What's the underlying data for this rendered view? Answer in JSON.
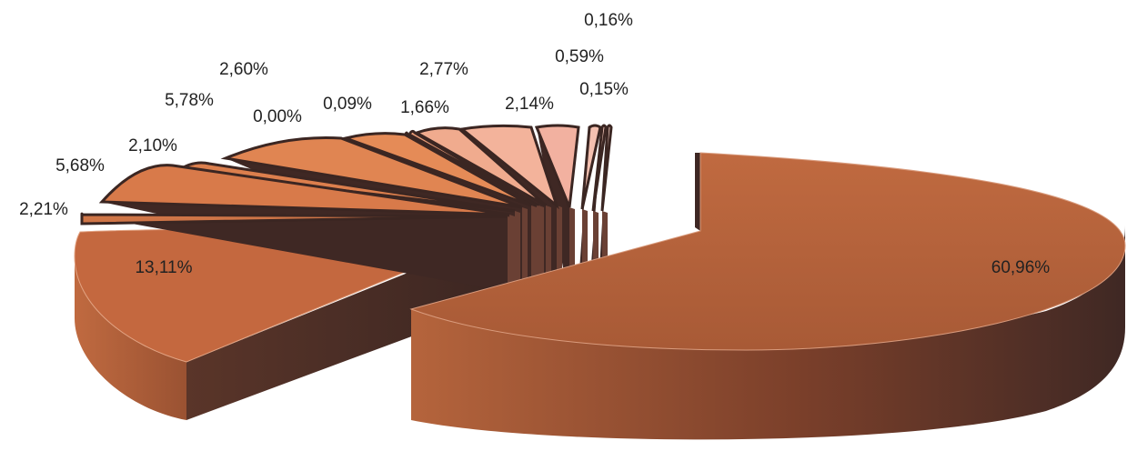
{
  "chart_data": {
    "type": "pie",
    "style": "3d-exploded",
    "values": [
      60.96,
      13.11,
      2.21,
      5.68,
      2.1,
      5.78,
      2.6,
      0.0,
      0.09,
      2.77,
      1.66,
      2.14,
      0.59,
      0.15,
      0.16
    ],
    "labels": [
      "60,96%",
      "13,11%",
      "2,21%",
      "5,68%",
      "2,10%",
      "5,78%",
      "2,60%",
      "0,00%",
      "0,09%",
      "2,77%",
      "1,66%",
      "2,14%",
      "0,59%",
      "0,15%",
      "0,16%"
    ],
    "colors": {
      "main_top": "#b5623a",
      "main_side": "#4e2f28",
      "slice_tops": [
        "#b5623a",
        "#c4683f",
        "#cf7547",
        "#d87a4a",
        "#dc7f4d",
        "#e08552",
        "#e58b57",
        "#e58b57",
        "#eb9d78",
        "#f0ab8e",
        "#f3b39b",
        "#f2b1a0",
        "#f4c0b0",
        "#f5c8bb",
        "#f7d0c4"
      ],
      "side_dark": "#4a2d27"
    },
    "legend": "none",
    "grid": false
  }
}
